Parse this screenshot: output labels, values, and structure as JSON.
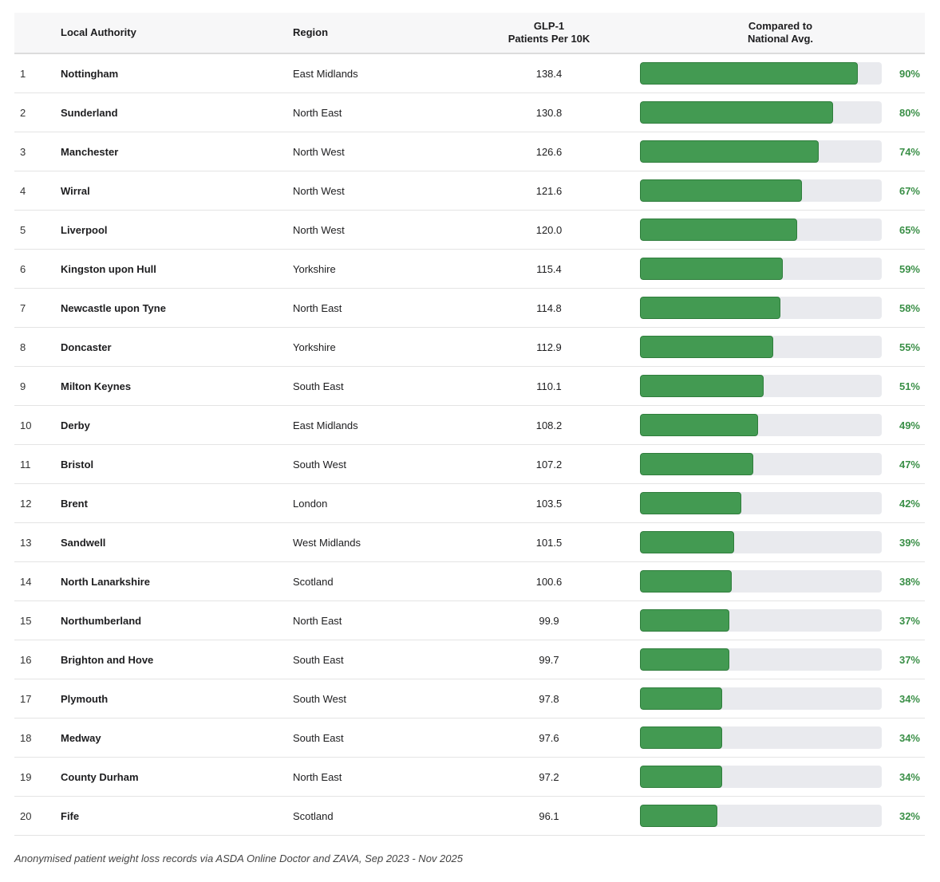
{
  "table": {
    "headers": {
      "rank": "",
      "local_authority": "Local Authority",
      "region": "Region",
      "glp_line1": "GLP-1",
      "glp_line2": "Patients Per 10K",
      "compare_line1": "Compared to",
      "compare_line2": "National Avg."
    },
    "rows": [
      {
        "rank": "1",
        "authority": "Nottingham",
        "region": "East Midlands",
        "value": "138.4",
        "pct_label": "90%",
        "pct": 90
      },
      {
        "rank": "2",
        "authority": "Sunderland",
        "region": "North East",
        "value": "130.8",
        "pct_label": "80%",
        "pct": 80
      },
      {
        "rank": "3",
        "authority": "Manchester",
        "region": "North West",
        "value": "126.6",
        "pct_label": "74%",
        "pct": 74
      },
      {
        "rank": "4",
        "authority": "Wirral",
        "region": "North West",
        "value": "121.6",
        "pct_label": "67%",
        "pct": 67
      },
      {
        "rank": "5",
        "authority": "Liverpool",
        "region": "North West",
        "value": "120.0",
        "pct_label": "65%",
        "pct": 65
      },
      {
        "rank": "6",
        "authority": "Kingston upon Hull",
        "region": "Yorkshire",
        "value": "115.4",
        "pct_label": "59%",
        "pct": 59
      },
      {
        "rank": "7",
        "authority": "Newcastle upon Tyne",
        "region": "North East",
        "value": "114.8",
        "pct_label": "58%",
        "pct": 58
      },
      {
        "rank": "8",
        "authority": "Doncaster",
        "region": "Yorkshire",
        "value": "112.9",
        "pct_label": "55%",
        "pct": 55
      },
      {
        "rank": "9",
        "authority": "Milton Keynes",
        "region": "South East",
        "value": "110.1",
        "pct_label": "51%",
        "pct": 51
      },
      {
        "rank": "10",
        "authority": "Derby",
        "region": "East Midlands",
        "value": "108.2",
        "pct_label": "49%",
        "pct": 49
      },
      {
        "rank": "11",
        "authority": "Bristol",
        "region": "South West",
        "value": "107.2",
        "pct_label": "47%",
        "pct": 47
      },
      {
        "rank": "12",
        "authority": "Brent",
        "region": "London",
        "value": "103.5",
        "pct_label": "42%",
        "pct": 42
      },
      {
        "rank": "13",
        "authority": "Sandwell",
        "region": "West Midlands",
        "value": "101.5",
        "pct_label": "39%",
        "pct": 39
      },
      {
        "rank": "14",
        "authority": "North Lanarkshire",
        "region": "Scotland",
        "value": "100.6",
        "pct_label": "38%",
        "pct": 38
      },
      {
        "rank": "15",
        "authority": "Northumberland",
        "region": "North East",
        "value": "99.9",
        "pct_label": "37%",
        "pct": 37
      },
      {
        "rank": "16",
        "authority": "Brighton and Hove",
        "region": "South East",
        "value": "99.7",
        "pct_label": "37%",
        "pct": 37
      },
      {
        "rank": "17",
        "authority": "Plymouth",
        "region": "South West",
        "value": "97.8",
        "pct_label": "34%",
        "pct": 34
      },
      {
        "rank": "18",
        "authority": "Medway",
        "region": "South East",
        "value": "97.6",
        "pct_label": "34%",
        "pct": 34
      },
      {
        "rank": "19",
        "authority": "County Durham",
        "region": "North East",
        "value": "97.2",
        "pct_label": "34%",
        "pct": 34
      },
      {
        "rank": "20",
        "authority": "Fife",
        "region": "Scotland",
        "value": "96.1",
        "pct_label": "32%",
        "pct": 32
      }
    ]
  },
  "footnote": "Anonymised patient weight loss records via ASDA Online Doctor and ZAVA, Sep 2023 - Nov 2025",
  "colors": {
    "bar_fill": "#439a52",
    "bar_track": "#e9eaee",
    "pct_text": "#3a8f47"
  }
}
